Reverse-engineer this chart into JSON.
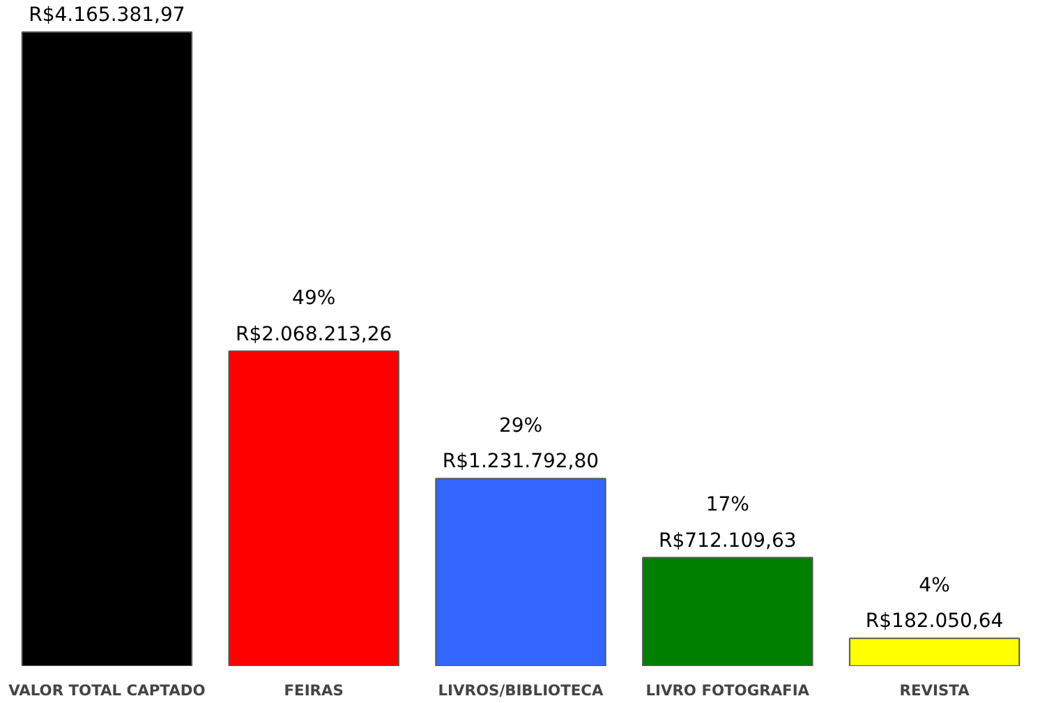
{
  "chart_data": {
    "type": "bar",
    "categories": [
      "VALOR TOTAL CAPTADO",
      "FEIRAS",
      "LIVROS/BIBLIOTECA",
      "LIVRO FOTOGRAFIA",
      "REVISTA"
    ],
    "values": [
      4165381.97,
      2068213.26,
      1231792.8,
      712109.63,
      182050.64
    ],
    "colors": [
      "#000000",
      "#ff0000",
      "#3366ff",
      "#008000",
      "#ffff00"
    ],
    "value_labels": [
      "R$4.165.381,97",
      "49%\nR$2.068.213,26",
      "29%\nR$1.231.792,80",
      "17%\nR$712.109,63",
      "4%\nR$182.050,64"
    ]
  }
}
